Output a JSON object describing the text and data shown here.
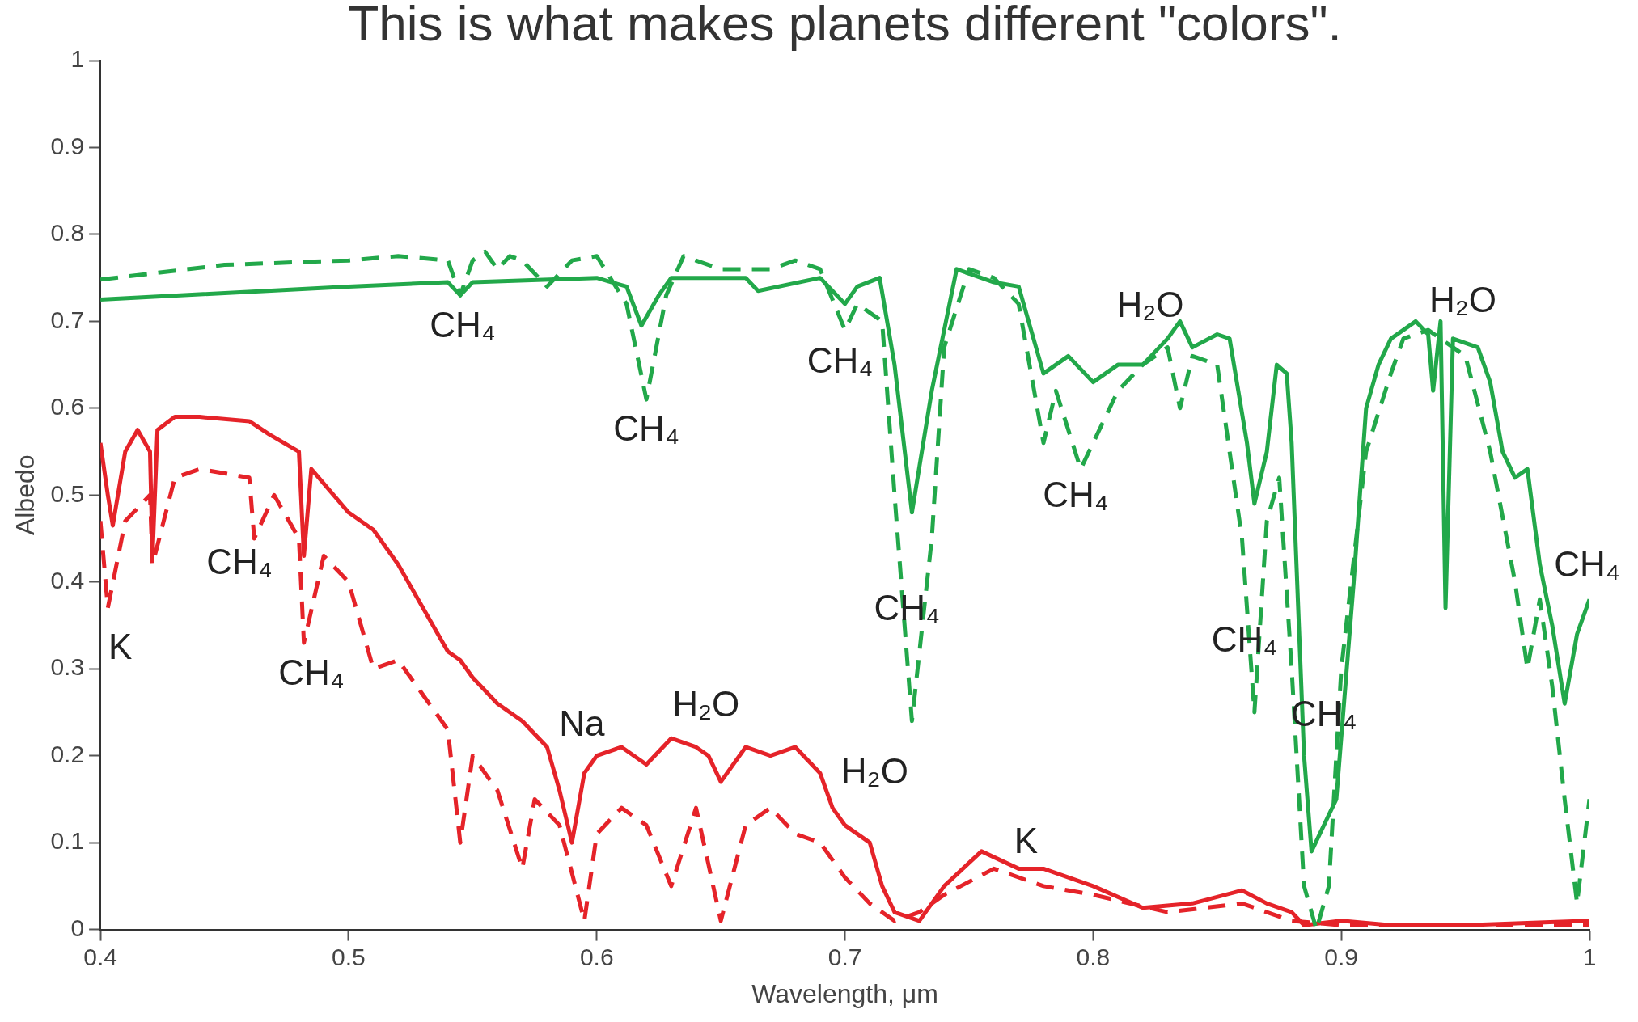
{
  "chart_data": {
    "type": "line",
    "title": "This is what makes planets different \"colors\".",
    "xlabel": "Wavelength, μm",
    "ylabel": "Albedo",
    "xlim": [
      0.4,
      1
    ],
    "xticks": [
      0.4,
      0.5,
      0.6,
      0.7,
      0.8,
      0.9,
      1
    ],
    "ylim": [
      0,
      1
    ],
    "yticks": [
      0,
      0.1,
      0.2,
      0.3,
      0.4,
      0.5,
      0.6,
      0.7,
      0.8,
      0.9,
      1
    ],
    "grid": false,
    "legend": false,
    "marker": "none",
    "series": [
      {
        "color": "#22a84a",
        "line_style": "solid",
        "x": [
          0.4,
          0.5,
          0.54,
          0.545,
          0.55,
          0.6,
          0.612,
          0.618,
          0.625,
          0.63,
          0.66,
          0.665,
          0.69,
          0.7,
          0.705,
          0.714,
          0.72,
          0.727,
          0.735,
          0.745,
          0.76,
          0.77,
          0.78,
          0.785,
          0.79,
          0.8,
          0.81,
          0.82,
          0.83,
          0.835,
          0.84,
          0.85,
          0.855,
          0.862,
          0.865,
          0.87,
          0.874,
          0.878,
          0.88,
          0.885,
          0.888,
          0.893,
          0.898,
          0.905,
          0.91,
          0.915,
          0.92,
          0.93,
          0.935,
          0.937,
          0.94,
          0.942,
          0.945,
          0.955,
          0.96,
          0.965,
          0.97,
          0.975,
          0.98,
          0.985,
          0.99,
          0.995,
          1
        ],
        "values": [
          0.725,
          0.74,
          0.745,
          0.73,
          0.745,
          0.75,
          0.74,
          0.695,
          0.73,
          0.75,
          0.75,
          0.735,
          0.75,
          0.72,
          0.74,
          0.75,
          0.65,
          0.48,
          0.62,
          0.76,
          0.745,
          0.74,
          0.64,
          0.65,
          0.66,
          0.63,
          0.65,
          0.65,
          0.68,
          0.7,
          0.67,
          0.685,
          0.68,
          0.56,
          0.49,
          0.55,
          0.65,
          0.64,
          0.56,
          0.2,
          0.09,
          0.12,
          0.15,
          0.4,
          0.6,
          0.65,
          0.68,
          0.7,
          0.685,
          0.62,
          0.7,
          0.37,
          0.68,
          0.67,
          0.63,
          0.55,
          0.52,
          0.53,
          0.42,
          0.35,
          0.26,
          0.34,
          0.38
        ]
      },
      {
        "color": "#22a84a",
        "line_style": "dashed",
        "x": [
          0.4,
          0.45,
          0.5,
          0.52,
          0.54,
          0.545,
          0.55,
          0.555,
          0.56,
          0.565,
          0.57,
          0.58,
          0.59,
          0.6,
          0.612,
          0.62,
          0.628,
          0.635,
          0.65,
          0.67,
          0.68,
          0.69,
          0.7,
          0.705,
          0.715,
          0.72,
          0.727,
          0.735,
          0.74,
          0.75,
          0.76,
          0.77,
          0.78,
          0.785,
          0.795,
          0.8,
          0.81,
          0.82,
          0.83,
          0.835,
          0.84,
          0.85,
          0.86,
          0.865,
          0.87,
          0.875,
          0.88,
          0.885,
          0.89,
          0.895,
          0.9,
          0.91,
          0.92,
          0.925,
          0.935,
          0.95,
          0.96,
          0.97,
          0.975,
          0.98,
          0.985,
          0.99,
          0.995,
          1
        ],
        "values": [
          0.748,
          0.765,
          0.77,
          0.775,
          0.77,
          0.73,
          0.77,
          0.78,
          0.76,
          0.775,
          0.77,
          0.74,
          0.77,
          0.775,
          0.72,
          0.61,
          0.73,
          0.775,
          0.76,
          0.76,
          0.77,
          0.76,
          0.69,
          0.72,
          0.7,
          0.5,
          0.24,
          0.45,
          0.67,
          0.76,
          0.75,
          0.72,
          0.56,
          0.62,
          0.53,
          0.56,
          0.62,
          0.65,
          0.67,
          0.6,
          0.66,
          0.65,
          0.45,
          0.25,
          0.47,
          0.52,
          0.3,
          0.05,
          0,
          0.05,
          0.3,
          0.55,
          0.64,
          0.68,
          0.69,
          0.66,
          0.55,
          0.4,
          0.3,
          0.38,
          0.28,
          0.15,
          0.03,
          0.15
        ]
      },
      {
        "color": "#e52329",
        "line_style": "solid",
        "x": [
          0.4,
          0.403,
          0.405,
          0.41,
          0.415,
          0.42,
          0.421,
          0.423,
          0.43,
          0.44,
          0.46,
          0.468,
          0.48,
          0.482,
          0.485,
          0.5,
          0.51,
          0.52,
          0.53,
          0.54,
          0.545,
          0.55,
          0.56,
          0.57,
          0.58,
          0.585,
          0.59,
          0.595,
          0.6,
          0.61,
          0.62,
          0.63,
          0.64,
          0.645,
          0.65,
          0.66,
          0.67,
          0.68,
          0.69,
          0.695,
          0.7,
          0.71,
          0.715,
          0.72,
          0.73,
          0.74,
          0.755,
          0.77,
          0.78,
          0.8,
          0.82,
          0.84,
          0.86,
          0.87,
          0.88,
          0.885,
          0.9,
          0.92,
          0.95,
          1
        ],
        "values": [
          0.56,
          0.5,
          0.465,
          0.55,
          0.575,
          0.55,
          0.43,
          0.575,
          0.59,
          0.59,
          0.585,
          0.57,
          0.55,
          0.43,
          0.53,
          0.48,
          0.46,
          0.42,
          0.37,
          0.32,
          0.31,
          0.29,
          0.26,
          0.24,
          0.21,
          0.16,
          0.1,
          0.18,
          0.2,
          0.21,
          0.19,
          0.22,
          0.21,
          0.2,
          0.17,
          0.21,
          0.2,
          0.21,
          0.18,
          0.14,
          0.12,
          0.1,
          0.05,
          0.02,
          0.01,
          0.05,
          0.09,
          0.07,
          0.07,
          0.05,
          0.025,
          0.03,
          0.045,
          0.03,
          0.02,
          0.005,
          0.01,
          0.005,
          0.005,
          0.01
        ]
      },
      {
        "color": "#e52329",
        "line_style": "dashed",
        "x": [
          0.4,
          0.403,
          0.41,
          0.42,
          0.421,
          0.43,
          0.44,
          0.46,
          0.462,
          0.47,
          0.48,
          0.482,
          0.49,
          0.5,
          0.51,
          0.52,
          0.53,
          0.54,
          0.545,
          0.55,
          0.56,
          0.57,
          0.575,
          0.585,
          0.595,
          0.6,
          0.61,
          0.62,
          0.63,
          0.64,
          0.65,
          0.66,
          0.67,
          0.68,
          0.69,
          0.7,
          0.71,
          0.72,
          0.73,
          0.74,
          0.76,
          0.78,
          0.8,
          0.83,
          0.86,
          0.88,
          0.9,
          1
        ],
        "values": [
          0.47,
          0.37,
          0.47,
          0.5,
          0.42,
          0.52,
          0.53,
          0.52,
          0.45,
          0.5,
          0.45,
          0.33,
          0.43,
          0.4,
          0.3,
          0.31,
          0.27,
          0.23,
          0.1,
          0.2,
          0.16,
          0.07,
          0.15,
          0.12,
          0.01,
          0.11,
          0.14,
          0.12,
          0.05,
          0.14,
          0.01,
          0.12,
          0.14,
          0.11,
          0.1,
          0.06,
          0.03,
          0.01,
          0.02,
          0.04,
          0.07,
          0.05,
          0.04,
          0.02,
          0.03,
          0.01,
          0.005,
          0.005
        ]
      }
    ],
    "annotations": [
      "CH₄",
      "CH₄",
      "CH₄",
      "CH₄",
      "CH₄",
      "H₂O",
      "H₂O",
      "CH₄",
      "CH₄",
      "CH₄",
      "K",
      "CH₄",
      "CH₄",
      "Na",
      "H₂O",
      "H₂O",
      "K"
    ]
  }
}
